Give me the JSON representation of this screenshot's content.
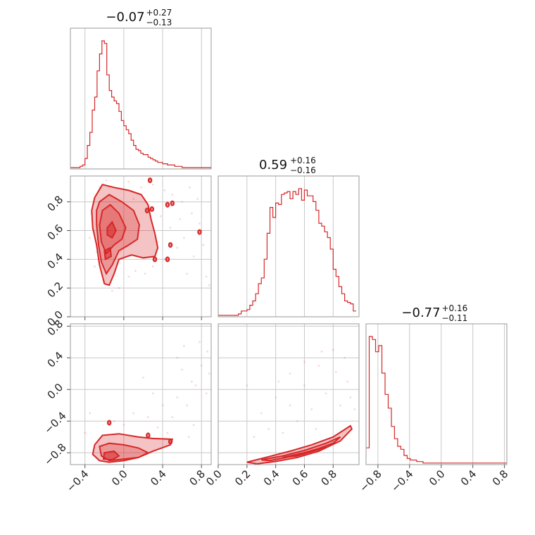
{
  "chart_data": {
    "type": "corner",
    "color": "#d62728",
    "parameters": [
      {
        "title_median": "−0.07",
        "title_plus": "+0.27",
        "title_minus": "−0.13",
        "range": [
          -0.55,
          0.9
        ],
        "ticks": [
          -0.4,
          0.0,
          0.4,
          0.8
        ],
        "tick_labels": [
          "−0.4",
          "0.0",
          "0.4",
          "0.8"
        ],
        "hist_step": 0.025,
        "hist_start": -0.55,
        "hist": [
          1,
          1,
          1,
          1,
          2,
          3,
          8,
          18,
          28,
          45,
          55,
          75,
          88,
          98,
          96,
          72,
          60,
          55,
          52,
          50,
          44,
          37,
          33,
          30,
          27,
          22,
          18,
          15,
          14,
          12,
          11,
          11,
          9,
          8,
          7,
          6,
          5,
          5,
          4,
          4,
          3,
          3,
          3,
          2,
          2,
          2,
          1,
          1,
          1,
          1,
          1,
          1,
          1,
          1,
          1,
          1,
          1,
          1
        ]
      },
      {
        "title_median": "0.59",
        "title_plus": "+0.16",
        "title_minus": "−0.16",
        "range": [
          0.0,
          0.98
        ],
        "ticks": [
          0.0,
          0.2,
          0.4,
          0.6,
          0.8
        ],
        "tick_labels": [
          "0.0",
          "0.2",
          "0.4",
          "0.6",
          "0.8"
        ],
        "hist_step": 0.02,
        "hist_start": 0.0,
        "hist": [
          1,
          1,
          1,
          1,
          1,
          1,
          1,
          2,
          4,
          4,
          5,
          8,
          11,
          16,
          23,
          27,
          40,
          58,
          76,
          69,
          79,
          78,
          85,
          86,
          87,
          82,
          87,
          85,
          89,
          81,
          88,
          84,
          84,
          80,
          74,
          65,
          63,
          59,
          55,
          47,
          33,
          28,
          21,
          16,
          11,
          10,
          9,
          4
        ]
      },
      {
        "title_median": "−0.77",
        "title_plus": "+0.16",
        "title_minus": "−0.11",
        "range": [
          -0.95,
          0.83
        ],
        "ticks": [
          -0.8,
          -0.4,
          0.0,
          0.4,
          0.8
        ],
        "tick_labels": [
          "−0.8",
          "−0.4",
          "0.0",
          "0.4",
          "0.8"
        ],
        "hist_step": 0.04,
        "hist_start": -0.95,
        "hist": [
          11,
          84,
          82,
          74,
          78,
          60,
          46,
          37,
          25,
          17,
          12,
          10,
          6,
          4,
          3,
          3,
          2,
          2,
          1,
          1,
          1,
          1,
          1,
          1,
          1,
          1,
          1,
          1,
          1,
          1,
          1,
          1,
          1,
          1,
          1,
          1,
          1,
          1,
          1,
          1,
          1,
          1,
          1,
          1,
          1
        ]
      }
    ],
    "pairs": [
      {
        "x_param": 0,
        "y_param": 1,
        "scatter": [
          [
            -0.3,
            0.82
          ],
          [
            -0.25,
            0.9
          ],
          [
            -0.18,
            0.95
          ],
          [
            0.05,
            0.94
          ],
          [
            0.18,
            0.9
          ],
          [
            0.3,
            0.92
          ],
          [
            0.42,
            0.88
          ],
          [
            0.5,
            0.85
          ],
          [
            0.6,
            0.8
          ],
          [
            0.7,
            0.72
          ],
          [
            0.78,
            0.65
          ],
          [
            0.82,
            0.5
          ],
          [
            0.85,
            0.28
          ],
          [
            0.88,
            0.22
          ],
          [
            0.62,
            0.55
          ],
          [
            0.55,
            0.48
          ],
          [
            0.48,
            0.62
          ],
          [
            0.38,
            0.7
          ],
          [
            0.3,
            0.35
          ],
          [
            0.22,
            0.3
          ],
          [
            0.12,
            0.32
          ],
          [
            0.05,
            0.28
          ],
          [
            -0.05,
            0.2
          ],
          [
            -0.12,
            0.18
          ],
          [
            -0.2,
            0.25
          ],
          [
            -0.3,
            0.35
          ],
          [
            -0.35,
            0.55
          ],
          [
            -0.33,
            0.72
          ],
          [
            0.65,
            0.3
          ],
          [
            0.72,
            0.42
          ],
          [
            0.8,
            0.6
          ],
          [
            0.58,
            0.68
          ],
          [
            0.45,
            0.8
          ],
          [
            0.35,
            0.52
          ],
          [
            0.42,
            0.4
          ],
          [
            0.25,
            0.75
          ],
          [
            0.1,
            0.82
          ],
          [
            -0.28,
            0.45
          ],
          [
            0.68,
            0.9
          ],
          [
            0.76,
            0.82
          ]
        ],
        "contours": [
          [
            [
              -0.3,
              0.83
            ],
            [
              -0.22,
              0.92
            ],
            [
              -0.1,
              0.9
            ],
            [
              0.05,
              0.88
            ],
            [
              0.18,
              0.85
            ],
            [
              0.25,
              0.78
            ],
            [
              0.28,
              0.68
            ],
            [
              0.32,
              0.58
            ],
            [
              0.35,
              0.48
            ],
            [
              0.32,
              0.42
            ],
            [
              0.2,
              0.41
            ],
            [
              0.08,
              0.43
            ],
            [
              -0.05,
              0.4
            ],
            [
              -0.1,
              0.3
            ],
            [
              -0.15,
              0.22
            ],
            [
              -0.2,
              0.23
            ],
            [
              -0.25,
              0.36
            ],
            [
              -0.28,
              0.5
            ],
            [
              -0.32,
              0.62
            ],
            [
              -0.33,
              0.74
            ]
          ],
          [
            [
              -0.25,
              0.8
            ],
            [
              -0.15,
              0.85
            ],
            [
              -0.02,
              0.8
            ],
            [
              0.1,
              0.74
            ],
            [
              0.16,
              0.64
            ],
            [
              0.14,
              0.54
            ],
            [
              0.05,
              0.5
            ],
            [
              -0.05,
              0.46
            ],
            [
              -0.12,
              0.36
            ],
            [
              -0.18,
              0.3
            ],
            [
              -0.23,
              0.38
            ],
            [
              -0.26,
              0.5
            ],
            [
              -0.28,
              0.64
            ],
            [
              -0.28,
              0.74
            ]
          ],
          [
            [
              -0.22,
              0.74
            ],
            [
              -0.14,
              0.78
            ],
            [
              -0.05,
              0.72
            ],
            [
              0.02,
              0.62
            ],
            [
              -0.02,
              0.54
            ],
            [
              -0.1,
              0.5
            ],
            [
              -0.18,
              0.44
            ],
            [
              -0.23,
              0.52
            ],
            [
              -0.25,
              0.64
            ]
          ]
        ],
        "cores": [
          [
            [
              -0.17,
              0.62
            ],
            [
              -0.12,
              0.66
            ],
            [
              -0.08,
              0.6
            ],
            [
              -0.12,
              0.55
            ],
            [
              -0.17,
              0.57
            ]
          ],
          [
            [
              -0.2,
              0.46
            ],
            [
              -0.14,
              0.48
            ],
            [
              -0.13,
              0.42
            ],
            [
              -0.19,
              0.4
            ]
          ]
        ],
        "islands": [
          [
            0.27,
            0.95
          ],
          [
            0.45,
            0.78
          ],
          [
            0.5,
            0.79
          ],
          [
            0.24,
            0.74
          ],
          [
            0.29,
            0.75
          ],
          [
            0.48,
            0.5
          ],
          [
            0.45,
            0.4
          ],
          [
            0.32,
            0.4
          ],
          [
            0.78,
            0.59
          ]
        ]
      },
      {
        "x_param": 0,
        "y_param": 2,
        "scatter": [
          [
            0.55,
            0.4
          ],
          [
            0.6,
            0.25
          ],
          [
            0.7,
            0.1
          ],
          [
            0.8,
            0.3
          ],
          [
            0.85,
            -0.05
          ],
          [
            0.65,
            -0.2
          ],
          [
            0.5,
            -0.35
          ],
          [
            0.72,
            -0.45
          ],
          [
            0.4,
            -0.2
          ],
          [
            0.3,
            -0.05
          ],
          [
            0.2,
            0.15
          ],
          [
            0.1,
            -0.3
          ],
          [
            0.0,
            -0.45
          ],
          [
            -0.1,
            -0.4
          ],
          [
            0.62,
            0.55
          ],
          [
            0.78,
            0.6
          ],
          [
            0.45,
            -0.55
          ],
          [
            0.35,
            -0.48
          ],
          [
            0.86,
            0.48
          ],
          [
            0.88,
            0.2
          ],
          [
            0.55,
            -0.1
          ],
          [
            0.25,
            -0.35
          ],
          [
            -0.35,
            -0.3
          ],
          [
            -0.4,
            -0.55
          ],
          [
            0.67,
            -0.6
          ],
          [
            0.74,
            0.05
          ]
        ],
        "contours": [
          [
            [
              -0.3,
              -0.7
            ],
            [
              -0.22,
              -0.58
            ],
            [
              -0.05,
              -0.56
            ],
            [
              0.15,
              -0.6
            ],
            [
              0.3,
              -0.62
            ],
            [
              0.5,
              -0.63
            ],
            [
              0.48,
              -0.7
            ],
            [
              0.3,
              -0.78
            ],
            [
              0.15,
              -0.86
            ],
            [
              0.0,
              -0.9
            ],
            [
              -0.15,
              -0.92
            ],
            [
              -0.25,
              -0.9
            ],
            [
              -0.32,
              -0.82
            ]
          ],
          [
            [
              -0.25,
              -0.72
            ],
            [
              -0.15,
              -0.68
            ],
            [
              0.0,
              -0.7
            ],
            [
              0.15,
              -0.74
            ],
            [
              0.25,
              -0.8
            ],
            [
              0.15,
              -0.86
            ],
            [
              0.0,
              -0.88
            ],
            [
              -0.15,
              -0.9
            ],
            [
              -0.23,
              -0.84
            ]
          ]
        ],
        "cores": [
          [
            [
              -0.2,
              -0.8
            ],
            [
              -0.1,
              -0.78
            ],
            [
              -0.05,
              -0.84
            ],
            [
              -0.12,
              -0.89
            ],
            [
              -0.21,
              -0.88
            ]
          ]
        ],
        "islands": [
          [
            -0.15,
            -0.42
          ],
          [
            0.25,
            -0.58
          ],
          [
            0.48,
            -0.66
          ]
        ]
      },
      {
        "x_param": 1,
        "y_param": 2,
        "scatter": [
          [
            0.3,
            -0.3
          ],
          [
            0.4,
            -0.1
          ],
          [
            0.5,
            0.2
          ],
          [
            0.6,
            0.05
          ],
          [
            0.7,
            0.3
          ],
          [
            0.8,
            0.5
          ],
          [
            0.9,
            0.1
          ],
          [
            0.75,
            -0.05
          ],
          [
            0.65,
            -0.25
          ],
          [
            0.55,
            -0.4
          ],
          [
            0.45,
            -0.55
          ],
          [
            0.85,
            -0.2
          ],
          [
            0.92,
            -0.1
          ],
          [
            0.35,
            -0.5
          ],
          [
            0.25,
            -0.6
          ],
          [
            0.5,
            -0.2
          ],
          [
            0.6,
            0.35
          ],
          [
            0.72,
            0.48
          ],
          [
            0.82,
            0.22
          ],
          [
            0.95,
            -0.25
          ],
          [
            0.42,
            0.1
          ],
          [
            0.68,
            -0.5
          ],
          [
            0.2,
            0.05
          ],
          [
            0.88,
            0.4
          ]
        ],
        "contours": [
          [
            [
              0.2,
              -0.92
            ],
            [
              0.35,
              -0.85
            ],
            [
              0.5,
              -0.78
            ],
            [
              0.65,
              -0.7
            ],
            [
              0.8,
              -0.6
            ],
            [
              0.92,
              -0.46
            ],
            [
              0.93,
              -0.5
            ],
            [
              0.85,
              -0.65
            ],
            [
              0.7,
              -0.78
            ],
            [
              0.55,
              -0.86
            ],
            [
              0.4,
              -0.91
            ],
            [
              0.27,
              -0.94
            ]
          ],
          [
            [
              0.3,
              -0.89
            ],
            [
              0.45,
              -0.84
            ],
            [
              0.6,
              -0.77
            ],
            [
              0.75,
              -0.68
            ],
            [
              0.85,
              -0.6
            ],
            [
              0.8,
              -0.68
            ],
            [
              0.65,
              -0.78
            ],
            [
              0.5,
              -0.85
            ],
            [
              0.36,
              -0.9
            ]
          ]
        ],
        "cores": [
          [
            [
              0.45,
              -0.86
            ],
            [
              0.6,
              -0.8
            ],
            [
              0.75,
              -0.72
            ],
            [
              0.7,
              -0.76
            ],
            [
              0.55,
              -0.84
            ]
          ]
        ],
        "islands": []
      }
    ]
  }
}
